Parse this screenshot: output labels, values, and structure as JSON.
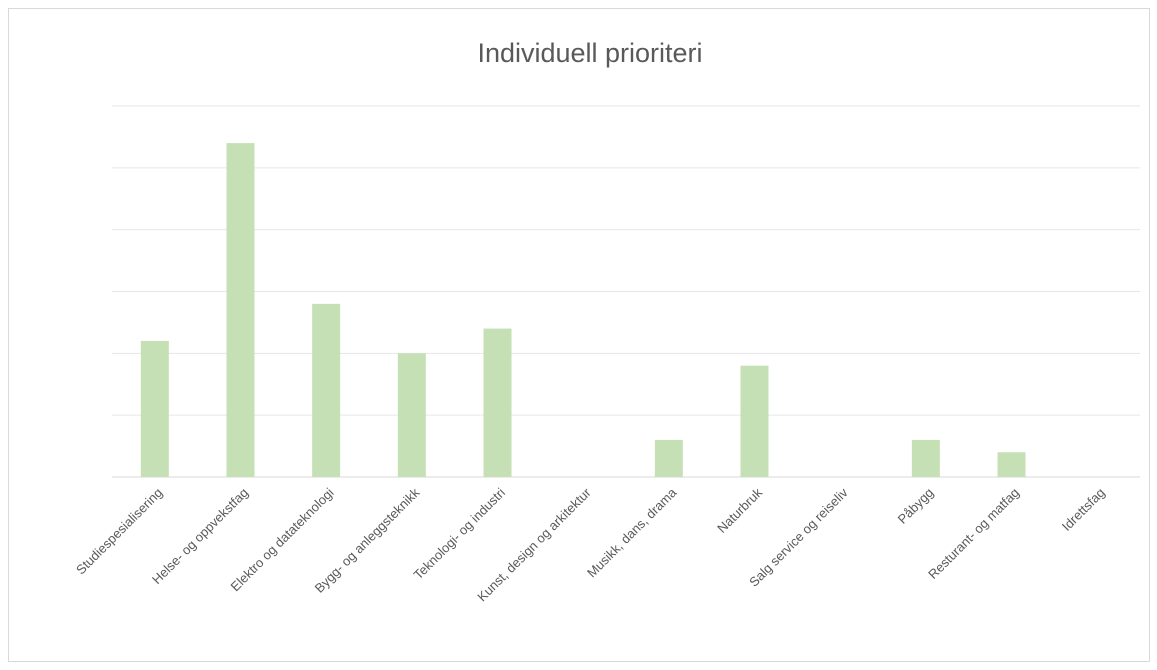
{
  "chart_data": {
    "type": "bar",
    "title": "Individuell prioriteri",
    "categories": [
      "Studiespesialisering",
      "Helse- og oppvekstfag",
      "Elektro og datateknologi",
      "Bygg- og anleggsteknikk",
      "Teknologi- og industri",
      "Kunst, design og arkitektur",
      "Musikk, dans, drama",
      "Naturbruk",
      "Salg service og reiseliv",
      "Påbygg",
      "Resturant- og matfag",
      "Idrettsfag"
    ],
    "values": [
      11,
      27,
      14,
      10,
      12,
      0,
      3,
      9,
      0,
      3,
      2,
      0
    ],
    "color": "#c5e0b4",
    "ylim": [
      0,
      30
    ],
    "yticks": [
      0,
      5,
      10,
      15,
      20,
      25,
      30
    ],
    "grid": true
  }
}
